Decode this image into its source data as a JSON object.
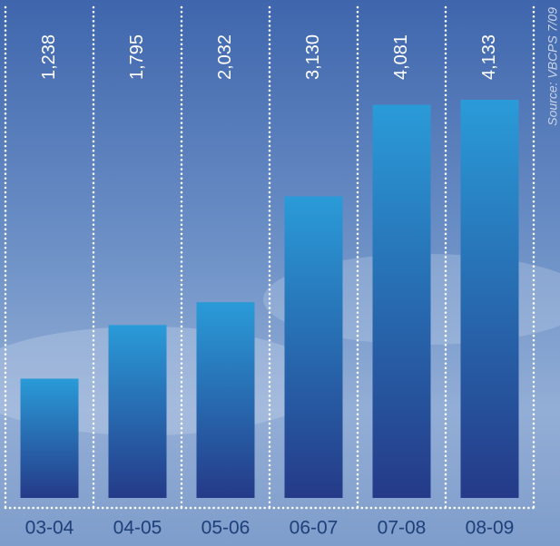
{
  "chart_data": {
    "type": "bar",
    "categories": [
      "03-04",
      "04-05",
      "05-06",
      "06-07",
      "07-08",
      "08-09"
    ],
    "values": [
      1238,
      1795,
      2032,
      3130,
      4081,
      4133
    ],
    "value_labels": [
      "1,238",
      "1,795",
      "2,032",
      "3,130",
      "4,081",
      "4,133"
    ],
    "source": "Source: VBCPS 7/09"
  }
}
